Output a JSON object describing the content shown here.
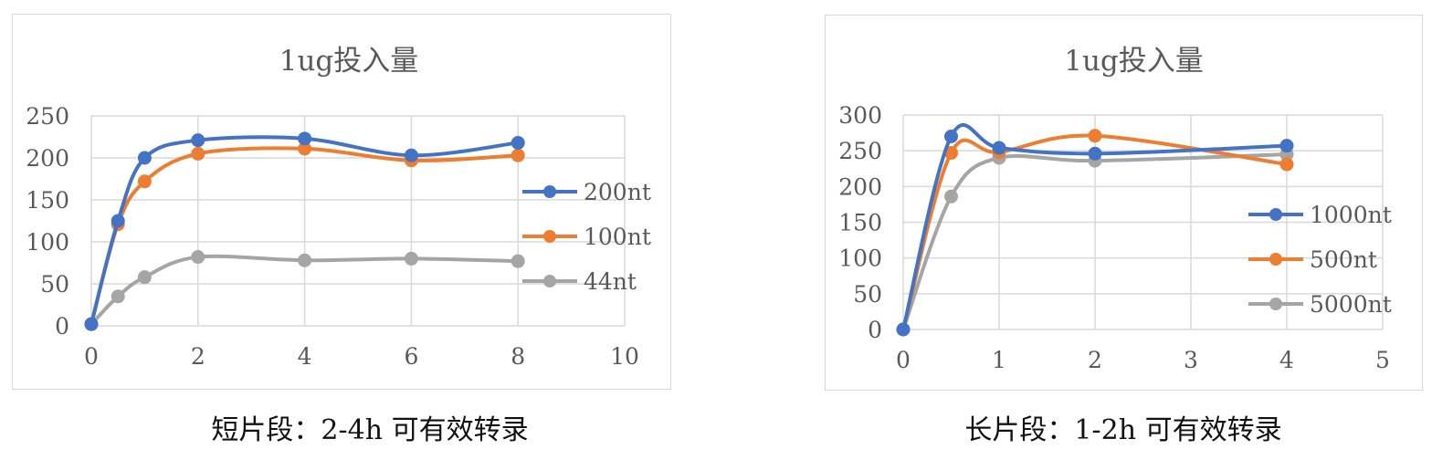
{
  "chart_data": [
    {
      "type": "line",
      "title": "1ug投入量",
      "xlabel": "",
      "ylabel": "",
      "xlim": [
        0,
        10
      ],
      "ylim": [
        0,
        250
      ],
      "xticks": [
        0,
        2,
        4,
        6,
        8,
        10
      ],
      "yticks": [
        0,
        50,
        100,
        150,
        200,
        250
      ],
      "grid": true,
      "smooth": true,
      "legend_position": "right",
      "series": [
        {
          "name": "200nt",
          "color": "#4472C4",
          "x": [
            0,
            0.5,
            1,
            2,
            4,
            6,
            8
          ],
          "y": [
            2,
            125,
            200,
            221,
            223,
            203,
            218
          ]
        },
        {
          "name": "100nt",
          "color": "#ED7D31",
          "x": [
            0,
            0.5,
            1,
            2,
            4,
            6,
            8
          ],
          "y": [
            2,
            121,
            172,
            205,
            211,
            197,
            203
          ]
        },
        {
          "name": "44nt",
          "color": "#A5A5A5",
          "x": [
            0,
            0.5,
            1,
            2,
            4,
            6,
            8
          ],
          "y": [
            2,
            35,
            58,
            82,
            78,
            80,
            77
          ]
        }
      ]
    },
    {
      "type": "line",
      "title": "1ug投入量",
      "xlabel": "",
      "ylabel": "",
      "xlim": [
        0,
        5
      ],
      "ylim": [
        0,
        300
      ],
      "xticks": [
        0,
        1,
        2,
        3,
        4,
        5
      ],
      "yticks": [
        0,
        50,
        100,
        150,
        200,
        250,
        300
      ],
      "grid": true,
      "smooth": true,
      "legend_position": "right",
      "series": [
        {
          "name": "1000nt",
          "color": "#4472C4",
          "x": [
            0,
            0.5,
            1,
            2,
            4
          ],
          "y": [
            0,
            270,
            254,
            246,
            257
          ]
        },
        {
          "name": "500nt",
          "color": "#ED7D31",
          "x": [
            0,
            0.5,
            1,
            2,
            4
          ],
          "y": [
            0,
            247,
            248,
            271,
            231
          ]
        },
        {
          "name": "5000nt",
          "color": "#A5A5A5",
          "x": [
            0,
            0.5,
            1,
            2,
            4
          ],
          "y": [
            0,
            186,
            240,
            236,
            245
          ]
        }
      ]
    }
  ],
  "captions": {
    "left": "短片段：2-4h 可有效转录",
    "right": "长片段：1-2h 可有效转录"
  }
}
